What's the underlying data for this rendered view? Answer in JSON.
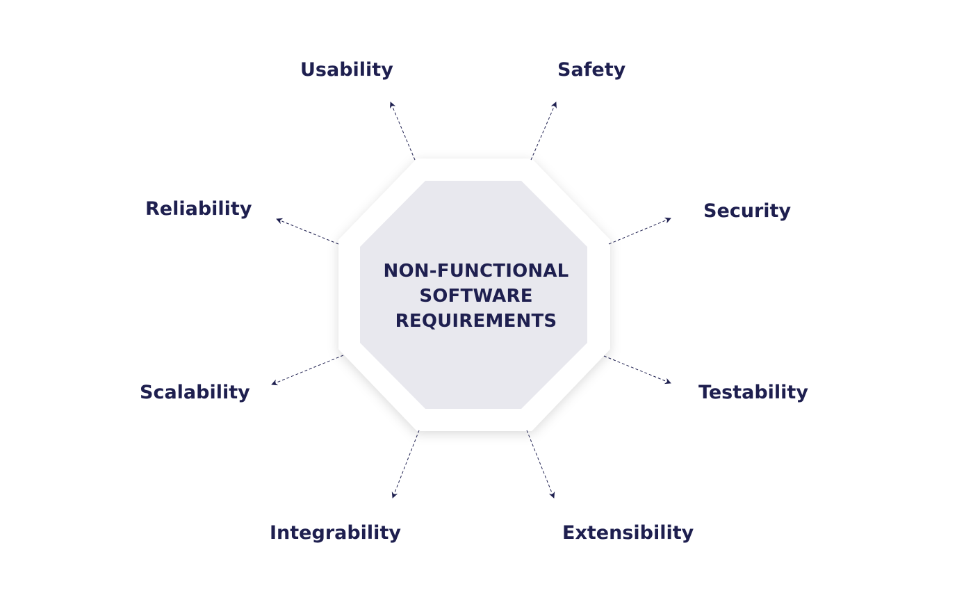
{
  "title_lines": [
    "NON-FUNCTIONAL",
    "SOFTWARE",
    "REQUIREMENTS"
  ],
  "requirements": [
    "Usability",
    "Safety",
    "Security",
    "Testability",
    "Extensibility",
    "Integrability",
    "Scalability",
    "Reliability"
  ],
  "colors": {
    "text": "#1e1f4f",
    "octagon_fill": "#e8e8ee",
    "octagon_frame": "#ffffff",
    "connector": "#1e1f4f"
  }
}
